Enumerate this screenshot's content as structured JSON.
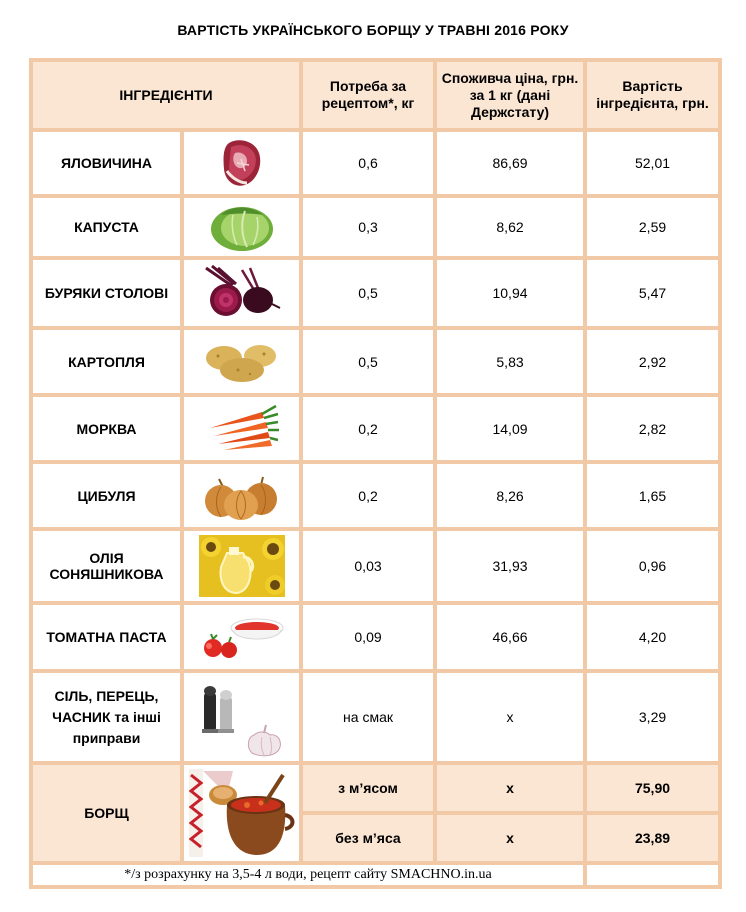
{
  "title": "ВАРТІСТЬ УКРАЇНСЬКОГО БОРЩУ У ТРАВНІ  2016 РОКУ",
  "header": {
    "ingredients": "ІНГРЕДІЄНТИ",
    "need": "Потреба за рецептом*, кг",
    "price": "Споживча ціна, грн. за 1 кг  (дані Держстату)",
    "cost": "Вартість інгредієнта, грн."
  },
  "rows": [
    {
      "name": "ЯЛОВИЧИНА",
      "icon": "beef-icon",
      "need": "0,6",
      "price": "86,69",
      "cost": "52,01"
    },
    {
      "name": "КАПУСТА",
      "icon": "cabbage-icon",
      "need": "0,3",
      "price": "8,62",
      "cost": "2,59"
    },
    {
      "name": "БУРЯКИ СТОЛОВІ",
      "icon": "beetroot-icon",
      "need": "0,5",
      "price": "10,94",
      "cost": "5,47"
    },
    {
      "name": "КАРТОПЛЯ",
      "icon": "potato-icon",
      "need": "0,5",
      "price": "5,83",
      "cost": "2,92"
    },
    {
      "name": "МОРКВА",
      "icon": "carrot-icon",
      "need": "0,2",
      "price": "14,09",
      "cost": "2,82"
    },
    {
      "name": "ЦИБУЛЯ",
      "icon": "onion-icon",
      "need": "0,2",
      "price": "8,26",
      "cost": "1,65"
    },
    {
      "name": "ОЛІЯ СОНЯШНИКОВА",
      "icon": "sunflower-oil-icon",
      "need": "0,03",
      "price": "31,93",
      "cost": "0,96"
    },
    {
      "name": "ТОМАТНА ПАСТА",
      "icon": "tomato-paste-icon",
      "need": "0,09",
      "price": "46,66",
      "cost": "4,20"
    },
    {
      "name_lines": [
        "СІЛЬ, ПЕРЕЦЬ,",
        "ЧАСНИК та інші",
        "приправи"
      ],
      "icon": "spices-icon",
      "need": "на смак",
      "price": "x",
      "cost": "3,29"
    }
  ],
  "total": {
    "name": "БОРЩ",
    "icon": "borsch-pot-icon",
    "with_meat": {
      "label": "з м’ясом",
      "price": "x",
      "cost": "75,90"
    },
    "without_meat": {
      "label": "без м’яса",
      "price": "x",
      "cost": "23,89"
    }
  },
  "footnote": "*/з розрахунку  на 3,5-4 л води, рецепт сайту SMACHNO.in.ua"
}
